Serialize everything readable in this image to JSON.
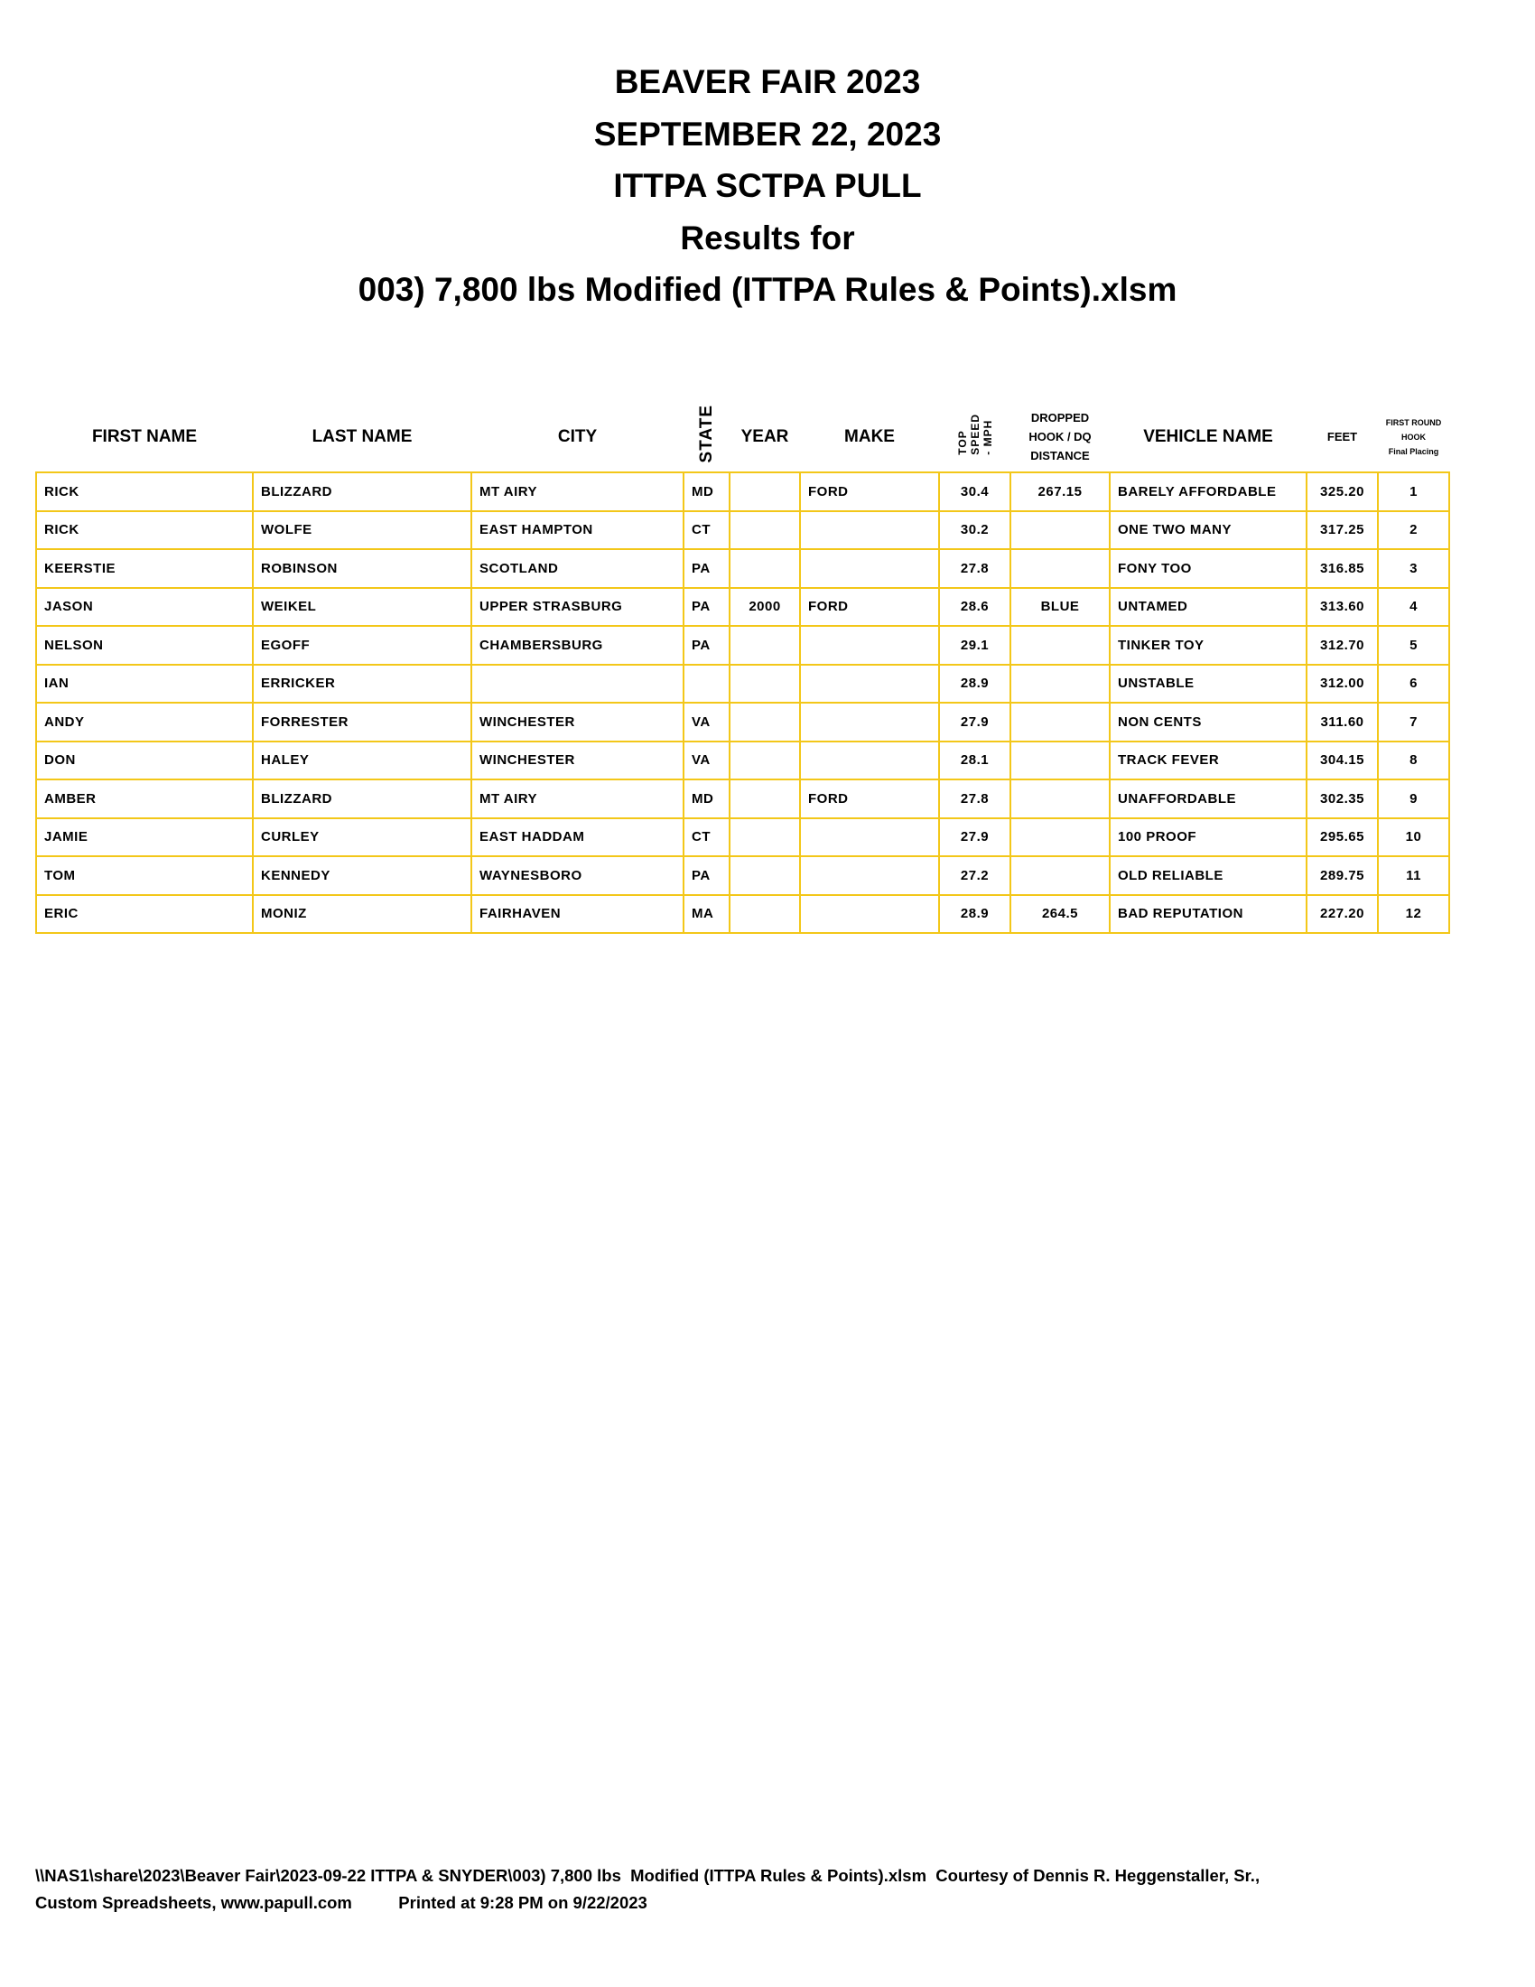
{
  "title_lines": [
    "BEAVER FAIR 2023",
    "SEPTEMBER 22, 2023",
    "ITTPA SCTPA PULL",
    "Results for",
    "003) 7,800 lbs  Modified (ITTPA Rules & Points).xlsm"
  ],
  "table": {
    "headers": {
      "first_name": "FIRST NAME",
      "last_name": "LAST NAME",
      "city": "CITY",
      "state": "STATE",
      "year": "YEAR",
      "make": "MAKE",
      "top_speed": [
        "TOP",
        "SPEED",
        "- MPH"
      ],
      "dropped": [
        "DROPPED",
        "HOOK / DQ",
        "DISTANCE"
      ],
      "vehicle_name": "VEHICLE NAME",
      "feet": "FEET",
      "placing": [
        "FIRST ROUND",
        "HOOK",
        "Final Placing"
      ]
    },
    "rows": [
      {
        "first": "RICK",
        "last": "BLIZZARD",
        "city": "MT AIRY",
        "state": "MD",
        "year": "",
        "make": "FORD",
        "speed": "30.4",
        "dropped": "267.15",
        "vehicle": "BARELY AFFORDABLE",
        "feet": "325.20",
        "place": "1"
      },
      {
        "first": "RICK",
        "last": "WOLFE",
        "city": "EAST HAMPTON",
        "state": "CT",
        "year": "",
        "make": "",
        "speed": "30.2",
        "dropped": "",
        "vehicle": "ONE TWO MANY",
        "feet": "317.25",
        "place": "2"
      },
      {
        "first": "KEERSTIE",
        "last": "ROBINSON",
        "city": "SCOTLAND",
        "state": "PA",
        "year": "",
        "make": "",
        "speed": "27.8",
        "dropped": "",
        "vehicle": "FONY TOO",
        "feet": "316.85",
        "place": "3"
      },
      {
        "first": "JASON",
        "last": "WEIKEL",
        "city": "UPPER STRASBURG",
        "state": "PA",
        "year": "2000",
        "make": "FORD",
        "speed": "28.6",
        "dropped": "BLUE",
        "vehicle": "UNTAMED",
        "feet": "313.60",
        "place": "4"
      },
      {
        "first": "NELSON",
        "last": "EGOFF",
        "city": "CHAMBERSBURG",
        "state": "PA",
        "year": "",
        "make": "",
        "speed": "29.1",
        "dropped": "",
        "vehicle": "TINKER TOY",
        "feet": "312.70",
        "place": "5"
      },
      {
        "first": "IAN",
        "last": "ERRICKER",
        "city": "",
        "state": "",
        "year": "",
        "make": "",
        "speed": "28.9",
        "dropped": "",
        "vehicle": "UNSTABLE",
        "feet": "312.00",
        "place": "6"
      },
      {
        "first": "ANDY",
        "last": "FORRESTER",
        "city": "WINCHESTER",
        "state": "VA",
        "year": "",
        "make": "",
        "speed": "27.9",
        "dropped": "",
        "vehicle": "NON CENTS",
        "feet": "311.60",
        "place": "7"
      },
      {
        "first": "DON",
        "last": "HALEY",
        "city": "WINCHESTER",
        "state": "VA",
        "year": "",
        "make": "",
        "speed": "28.1",
        "dropped": "",
        "vehicle": "TRACK FEVER",
        "feet": "304.15",
        "place": "8"
      },
      {
        "first": "AMBER",
        "last": "BLIZZARD",
        "city": "MT AIRY",
        "state": "MD",
        "year": "",
        "make": "FORD",
        "speed": "27.8",
        "dropped": "",
        "vehicle": "UNAFFORDABLE",
        "feet": "302.35",
        "place": "9"
      },
      {
        "first": "JAMIE",
        "last": "CURLEY",
        "city": "EAST HADDAM",
        "state": "CT",
        "year": "",
        "make": "",
        "speed": "27.9",
        "dropped": "",
        "vehicle": "100 PROOF",
        "feet": "295.65",
        "place": "10"
      },
      {
        "first": "TOM",
        "last": "KENNEDY",
        "city": "WAYNESBORO",
        "state": "PA",
        "year": "",
        "make": "",
        "speed": "27.2",
        "dropped": "",
        "vehicle": "OLD RELIABLE",
        "feet": "289.75",
        "place": "11"
      },
      {
        "first": "ERIC",
        "last": "MONIZ",
        "city": "FAIRHAVEN",
        "state": "MA",
        "year": "",
        "make": "",
        "speed": "28.9",
        "dropped": "264.5",
        "vehicle": "BAD REPUTATION",
        "feet": "227.20",
        "place": "12"
      }
    ]
  },
  "footer": {
    "line1": "\\\\NAS1\\share\\2023\\Beaver Fair\\2023-09-22 ITTPA & SNYDER\\003) 7,800 lbs  Modified (ITTPA Rules & Points).xlsm  Courtesy of Dennis R. Heggenstaller, Sr.,",
    "line2": "Custom Spreadsheets, www.papull.com          Printed at 9:28 PM on 9/22/2023"
  },
  "colors": {
    "grid_border": "#f3c719"
  }
}
